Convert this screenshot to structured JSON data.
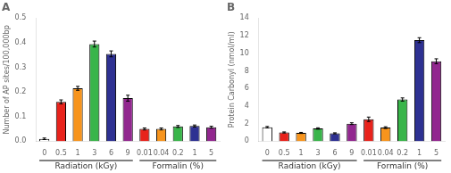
{
  "chart_data": [
    {
      "type": "bar",
      "title": "A",
      "y_label": "Number of AP sites/100,000bp",
      "groups": [
        {
          "name": "Radiation (kGy)",
          "categories": [
            "0",
            "0.5",
            "1",
            "3",
            "6",
            "9"
          ],
          "values": [
            0.01,
            0.16,
            0.215,
            0.395,
            0.355,
            0.175
          ],
          "errors": [
            0.003,
            0.008,
            0.008,
            0.012,
            0.012,
            0.012
          ],
          "colors": [
            "#ffffff",
            "#e8231c",
            "#f7941d",
            "#39b54a",
            "#2e3192",
            "#92278f"
          ]
        },
        {
          "name": "Formalin (%)",
          "categories": [
            "0.01",
            "0.04",
            "0.2",
            "1",
            "5"
          ],
          "values": [
            0.05,
            0.05,
            0.06,
            0.062,
            0.057
          ],
          "errors": [
            0.004,
            0.004,
            0.004,
            0.004,
            0.004
          ],
          "colors": [
            "#e8231c",
            "#f7941d",
            "#39b54a",
            "#2e3192",
            "#92278f"
          ]
        }
      ],
      "ylim": [
        0,
        0.5
      ],
      "yticks": [
        {
          "value": 0,
          "label": "0.0"
        },
        0.1,
        0.2,
        0.3,
        0.4,
        0.5
      ],
      "grid": false
    },
    {
      "type": "bar",
      "title": "B",
      "y_label": "Protein Carbonyl (nmol/ml)",
      "groups": [
        {
          "name": "Radiation (kGy)",
          "categories": [
            "0",
            "0.5",
            "1",
            "3",
            "6",
            "9"
          ],
          "values": [
            1.6,
            1.0,
            0.95,
            1.45,
            0.9,
            2.0
          ],
          "errors": [
            0.08,
            0.06,
            0.06,
            0.08,
            0.06,
            0.1
          ],
          "colors": [
            "#ffffff",
            "#e8231c",
            "#f7941d",
            "#39b54a",
            "#2e3192",
            "#92278f"
          ]
        },
        {
          "name": "Formalin (%)",
          "categories": [
            "0.01",
            "0.04",
            "0.2",
            "1",
            "5"
          ],
          "values": [
            2.5,
            1.55,
            4.75,
            11.5,
            9.1
          ],
          "errors": [
            0.25,
            0.1,
            0.18,
            0.28,
            0.28
          ],
          "colors": [
            "#e8231c",
            "#f7941d",
            "#39b54a",
            "#2e3192",
            "#92278f"
          ]
        }
      ],
      "ylim": [
        0,
        14
      ],
      "yticks": [
        0,
        2,
        4,
        6,
        8,
        10,
        12,
        14
      ],
      "grid": false
    }
  ]
}
